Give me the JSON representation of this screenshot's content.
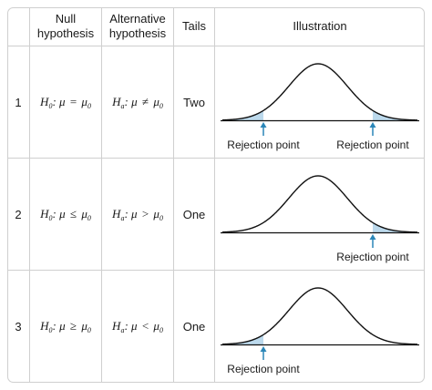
{
  "headers": {
    "null_line1": "Null",
    "null_line2": "hypothesis",
    "alt_line1": "Alternative",
    "alt_line2": "hypothesis",
    "tails": "Tails",
    "illustration": "Illustration"
  },
  "rows": [
    {
      "num": "1",
      "h0_rel": "=",
      "ha_rel": "≠",
      "tails": "Two",
      "rejection": "both"
    },
    {
      "num": "2",
      "h0_rel": "≤",
      "ha_rel": ">",
      "tails": "One",
      "rejection": "right"
    },
    {
      "num": "3",
      "h0_rel": "≥",
      "ha_rel": "<",
      "tails": "One",
      "rejection": "left"
    }
  ],
  "symbols": {
    "h": "H",
    "null_sub": "0",
    "alt_sub": "a",
    "mu": "μ",
    "mu_sub": "0"
  },
  "rejection_label": "Rejection point",
  "colors": {
    "border": "#cfcfcf",
    "shade": "#bcd9ec",
    "arrow": "#2a86b8",
    "curve": "#111111"
  }
}
